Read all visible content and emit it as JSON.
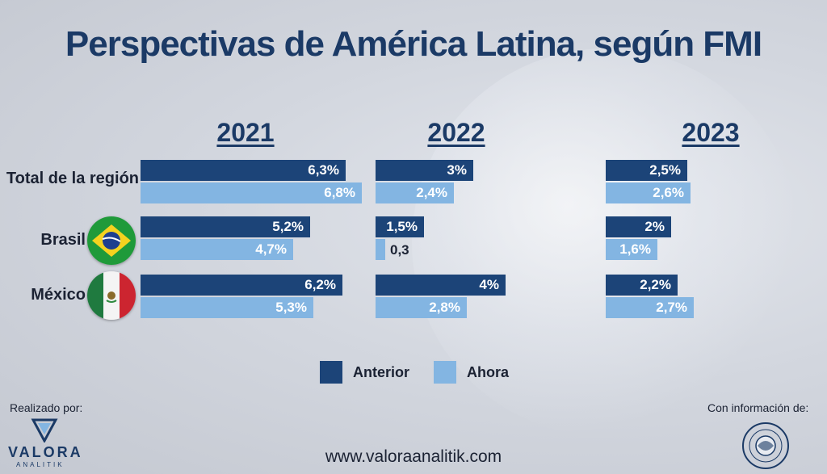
{
  "title": "Perspectivas de América Latina, según FMI",
  "colors": {
    "anterior": "#1c4478",
    "ahora": "#83b5e2",
    "title": "#1b3a66"
  },
  "chart_data": {
    "type": "bar",
    "orientation": "horizontal",
    "title": "Perspectivas de América Latina, según FMI",
    "panels": [
      "2021",
      "2022",
      "2023"
    ],
    "categories": [
      "Total de la región",
      "Brasil",
      "México"
    ],
    "series_names": [
      "Anterior",
      "Ahora"
    ],
    "values": {
      "2021": {
        "Anterior": [
          6.3,
          5.2,
          6.2
        ],
        "Ahora": [
          6.8,
          4.7,
          5.3
        ]
      },
      "2022": {
        "Anterior": [
          3,
          1.5,
          4
        ],
        "Ahora": [
          2.4,
          0.3,
          2.8
        ]
      },
      "2023": {
        "Anterior": [
          2.5,
          2,
          2.2
        ],
        "Ahora": [
          2.6,
          1.6,
          2.7
        ]
      }
    },
    "labels": {
      "2021": {
        "Anterior": [
          "6,3%",
          "5,2%",
          "6,2%"
        ],
        "Ahora": [
          "6,8%",
          "4,7%",
          "5,3%"
        ]
      },
      "2022": {
        "Anterior": [
          "3%",
          "1,5%",
          "4%"
        ],
        "Ahora": [
          "2,4%",
          "0,3",
          "2,8%"
        ]
      },
      "2023": {
        "Anterior": [
          "2,5%",
          "2%",
          "2,2%"
        ],
        "Ahora": [
          "2,6%",
          "1,6%",
          "2,7%"
        ]
      }
    },
    "legend": [
      "Anterior",
      "Ahora"
    ]
  },
  "footer": {
    "made_by": "Realizado por:",
    "source": "Con información de:",
    "url": "www.valoraanalitik.com",
    "logo_main": "VALORA",
    "logo_sub": "ANALITIK"
  }
}
